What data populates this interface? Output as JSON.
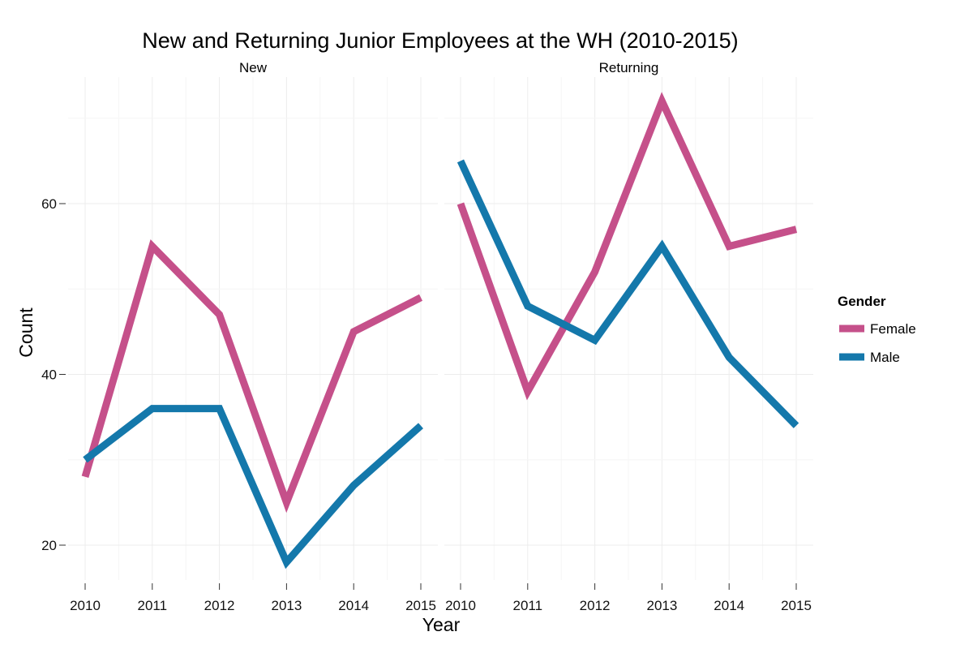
{
  "chart_data": {
    "type": "line",
    "title": "New and Returning Junior Employees at the WH (2010-2015)",
    "xlabel": "Year",
    "ylabel": "Count",
    "x": [
      2010,
      2011,
      2012,
      2013,
      2014,
      2015
    ],
    "ylim": [
      15,
      73
    ],
    "y_ticks": [
      20,
      40,
      60
    ],
    "grid": true,
    "legend": {
      "title": "Gender",
      "position": "right"
    },
    "colors": {
      "Female": "#c5508a",
      "Male": "#1478ab"
    },
    "panels": [
      {
        "name": "New",
        "series": [
          {
            "name": "Female",
            "values": [
              28,
              55,
              47,
              25,
              45,
              49
            ]
          },
          {
            "name": "Male",
            "values": [
              30,
              36,
              36,
              18,
              27,
              34
            ]
          }
        ]
      },
      {
        "name": "Returning",
        "series": [
          {
            "name": "Female",
            "values": [
              60,
              38,
              52,
              72,
              55,
              57
            ]
          },
          {
            "name": "Male",
            "values": [
              65,
              48,
              44,
              55,
              42,
              34
            ]
          }
        ]
      }
    ]
  }
}
